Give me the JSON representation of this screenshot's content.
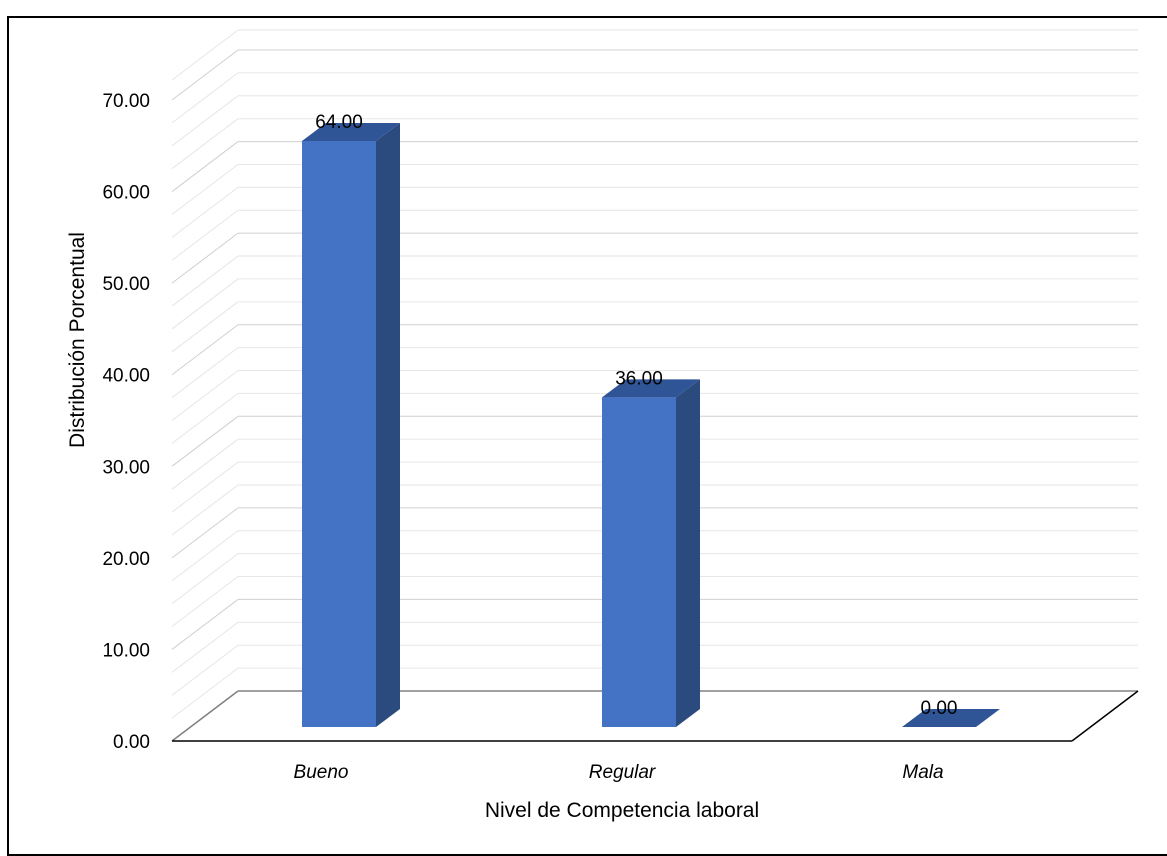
{
  "chart_data": {
    "type": "bar",
    "style": "3d-column",
    "categories": [
      "Bueno",
      "Regular",
      "Mala"
    ],
    "values": [
      64.0,
      36.0,
      0.0
    ],
    "data_labels": [
      "64.00",
      "36.00",
      "0.00"
    ],
    "title": "",
    "xlabel": "Nivel de Competencia laboral",
    "ylabel": "Distribución  Porcentual",
    "ylim": [
      0,
      70
    ],
    "yticks": [
      "0.00",
      "10.00",
      "20.00",
      "30.00",
      "40.00",
      "50.00",
      "60.00",
      "70.00"
    ],
    "grid": true,
    "legend": "none",
    "colors": {
      "bar_front": "#4472C4",
      "bar_side": "#2B4A7E",
      "bar_top": "#2F5597",
      "gridline": "#D9D9D9"
    }
  }
}
